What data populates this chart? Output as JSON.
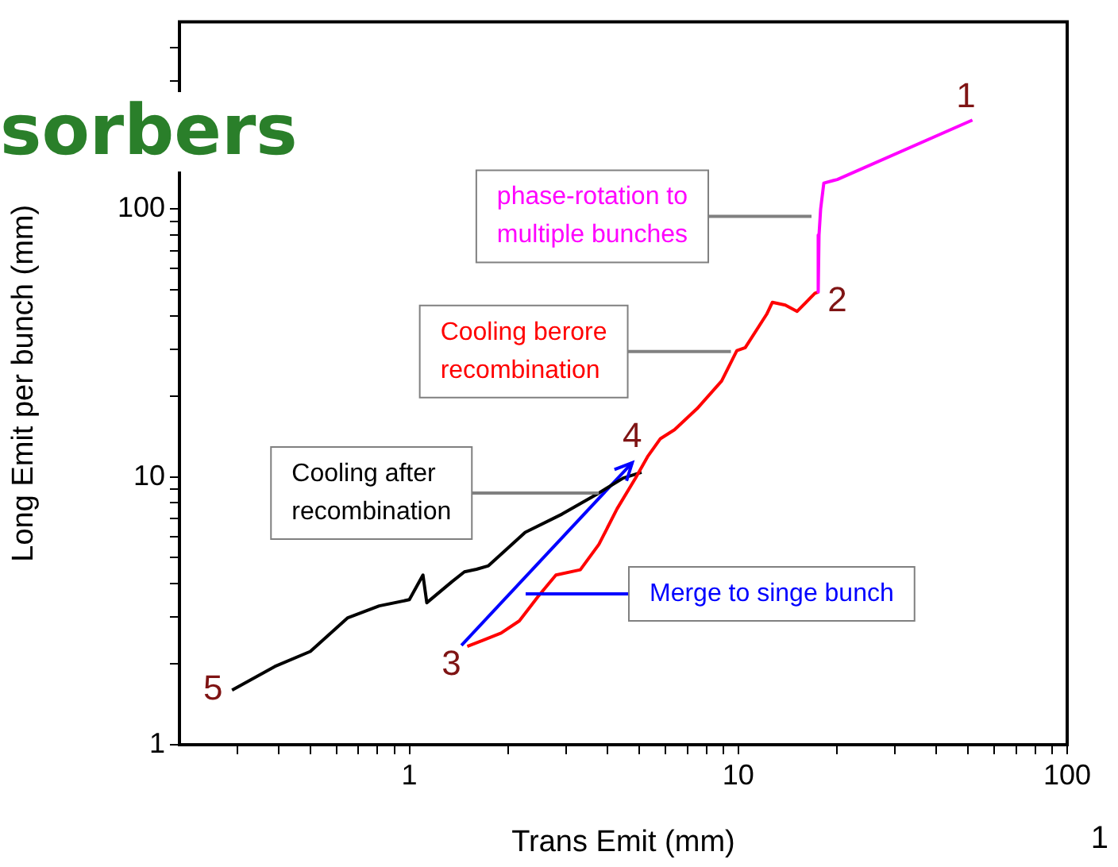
{
  "chart_data": {
    "type": "line",
    "xlabel": "Trans Emit (mm)",
    "ylabel": "Long Emit per bunch (mm)",
    "log": "xy",
    "xlim": [
      0.2,
      100
    ],
    "ylim": [
      1,
      500
    ],
    "xticks": [
      {
        "value": 0.3,
        "label": null
      },
      {
        "value": 0.4,
        "label": null
      },
      {
        "value": 0.5,
        "label": null
      },
      {
        "value": 0.6,
        "label": null
      },
      {
        "value": 0.7,
        "label": null
      },
      {
        "value": 0.8,
        "label": null
      },
      {
        "value": 0.9,
        "label": null
      },
      1,
      {
        "value": 2,
        "label": null
      },
      {
        "value": 3,
        "label": null
      },
      {
        "value": 4,
        "label": null
      },
      {
        "value": 5,
        "label": null
      },
      {
        "value": 6,
        "label": null
      },
      {
        "value": 7,
        "label": null
      },
      {
        "value": 8,
        "label": null
      },
      {
        "value": 9,
        "label": null
      },
      10,
      {
        "value": 20,
        "label": null
      },
      {
        "value": 30,
        "label": null
      },
      {
        "value": 40,
        "label": null
      },
      {
        "value": 50,
        "label": null
      },
      {
        "value": 60,
        "label": null
      },
      {
        "value": 70,
        "label": null
      },
      {
        "value": 80,
        "label": null
      },
      {
        "value": 90,
        "label": null
      },
      100
    ],
    "yticks": [
      1,
      {
        "value": 2,
        "label": null
      },
      {
        "value": 3,
        "label": null
      },
      {
        "value": 4,
        "label": null
      },
      {
        "value": 5,
        "label": null
      },
      {
        "value": 6,
        "label": null
      },
      {
        "value": 7,
        "label": null
      },
      {
        "value": 8,
        "label": null
      },
      {
        "value": 9,
        "label": null
      },
      10,
      {
        "value": 20,
        "label": null
      },
      {
        "value": 30,
        "label": null
      },
      {
        "value": 40,
        "label": null
      },
      {
        "value": 50,
        "label": null
      },
      {
        "value": 60,
        "label": null
      },
      {
        "value": 70,
        "label": null
      },
      {
        "value": 80,
        "label": null
      },
      {
        "value": 90,
        "label": null
      },
      100,
      {
        "value": 200,
        "label": null
      },
      {
        "value": 300,
        "label": null
      },
      {
        "value": 400,
        "label": null
      }
    ],
    "line_style": "solid",
    "series": [
      {
        "color": "#ff00ff",
        "x": [
          51.5,
          20.0,
          19.5,
          18.2,
          17.8,
          17.6,
          17.5
        ],
        "values": [
          215,
          129,
          128,
          125,
          100,
          80,
          49
        ]
      },
      {
        "color": "#ff0000",
        "x": [
          17.5,
          17.1,
          15.1,
          13.9,
          12.7,
          12.2,
          10.5,
          9.9,
          8.9,
          7.5,
          6.4,
          5.8,
          5.3,
          4.87,
          4.28,
          3.77,
          3.31,
          2.79,
          2.46,
          2.16,
          1.9,
          1.67,
          1.5
        ],
        "values": [
          49,
          48.5,
          41.5,
          43.8,
          44.9,
          40.5,
          30.4,
          29.6,
          22.8,
          18,
          15,
          13.9,
          11.9,
          9.9,
          7.6,
          5.6,
          4.5,
          4.3,
          3.57,
          2.9,
          2.61,
          2.45,
          2.33
        ]
      },
      {
        "color": "#000000",
        "x": [
          0.289,
          0.39,
          0.5,
          0.65,
          0.81,
          1.0,
          1.1,
          1.13,
          1.35,
          1.47,
          1.6,
          1.74,
          2.25,
          2.91,
          3.77,
          4.47,
          5.08
        ],
        "values": [
          1.6,
          1.96,
          2.23,
          2.98,
          3.3,
          3.48,
          4.3,
          3.39,
          4.07,
          4.42,
          4.52,
          4.66,
          6.21,
          7.26,
          8.71,
          9.9,
          10.4
        ]
      },
      {
        "color": "#0000ff",
        "x": [
          1.44,
          4.76
        ],
        "values": [
          2.35,
          11.3
        ]
      }
    ],
    "annotations": [
      {
        "text": "phase-rotation to\nmultiple bunches",
        "x": 16.7,
        "y": 94
      },
      {
        "text": "Cooling berore\nrecombination",
        "x": 9.5,
        "y": 29.4
      },
      {
        "text": "Cooling after\nrecombination",
        "x": 3.77,
        "y": 8.71
      },
      "Merge to singe bunch",
      {
        "text": "1",
        "x": 51.5,
        "y": 215
      },
      {
        "text": "2",
        "x": 17.5,
        "y": 49
      },
      {
        "text": "3",
        "x": 1.5,
        "y": 2.33
      },
      {
        "text": "4",
        "x": 4.76,
        "y": 11.3
      },
      {
        "text": "5",
        "x": 0.289,
        "y": 1.6
      },
      "sorbers",
      "1"
    ]
  }
}
